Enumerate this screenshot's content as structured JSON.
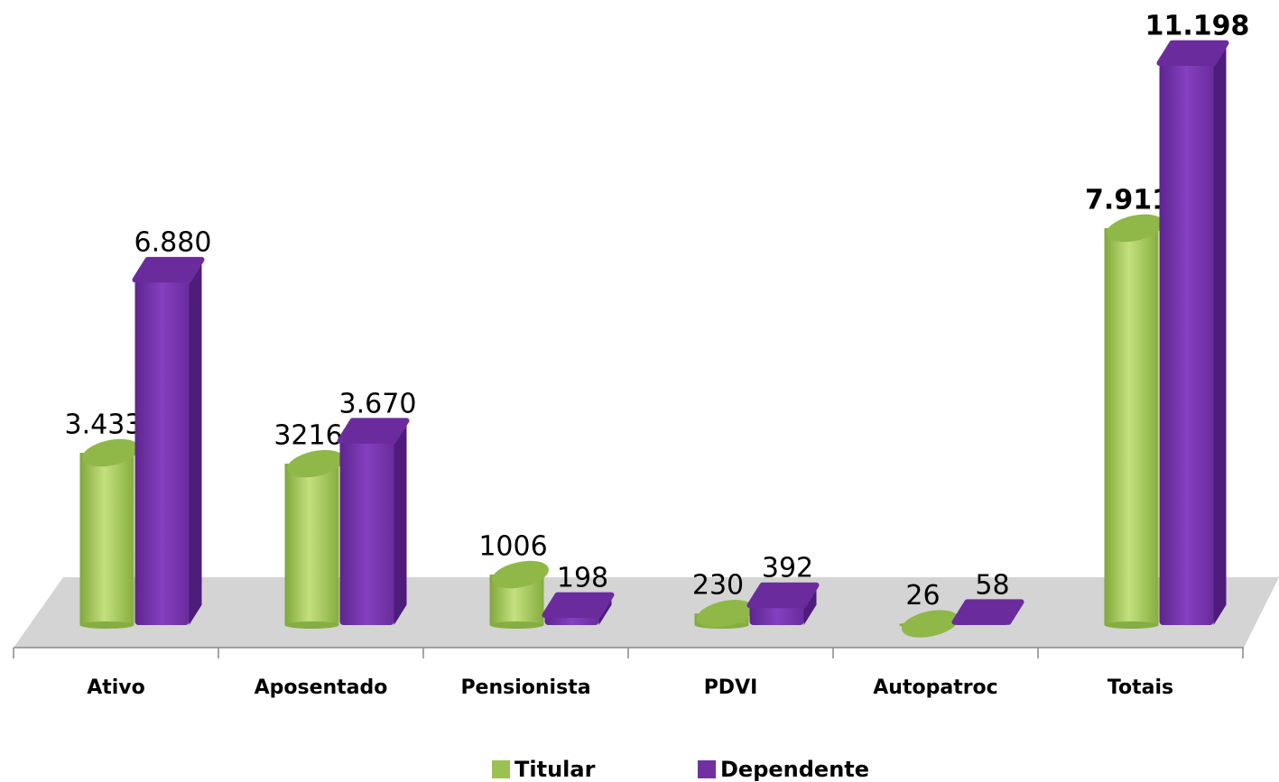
{
  "chart_data": {
    "type": "bar3d",
    "categories": [
      "Ativo",
      "Aposentado",
      "Pensionista",
      "PDVI",
      "Autopatroc",
      "Totais"
    ],
    "series": [
      {
        "name": "Titular",
        "color": "#9bc153",
        "values": [
          3433,
          3216,
          1006,
          230,
          26,
          7911
        ],
        "value_labels": [
          "3.433",
          "3216",
          "1006",
          "230",
          "26",
          "7.911"
        ]
      },
      {
        "name": "Dependente",
        "color": "#7030a0",
        "values": [
          6880,
          3670,
          198,
          392,
          58,
          11198
        ],
        "value_labels": [
          "6.880",
          "3.670",
          "198",
          "392",
          "58",
          "11.198"
        ]
      }
    ],
    "legend": "bottom"
  }
}
